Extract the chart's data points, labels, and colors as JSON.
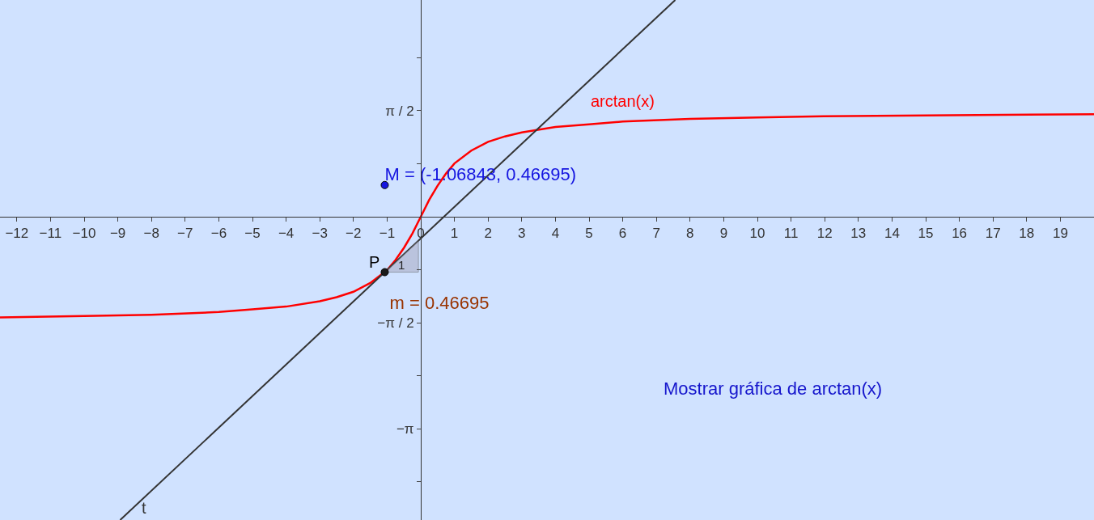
{
  "chart_data": {
    "type": "line",
    "x": [
      -12.5,
      -10,
      -8,
      -6,
      -5,
      -4,
      -3,
      -2.5,
      -2,
      -1.5,
      -1,
      -0.75,
      -0.5,
      -0.25,
      0,
      0.25,
      0.5,
      0.75,
      1,
      1.5,
      2,
      2.5,
      3,
      4,
      5,
      6,
      8,
      10,
      12,
      15,
      20
    ],
    "series": [
      {
        "name": "arctan(x)",
        "color": "#ff0000",
        "values": [
          -1.49,
          -1.47,
          -1.45,
          -1.41,
          -1.37,
          -1.33,
          -1.25,
          -1.19,
          -1.11,
          -0.98,
          -0.79,
          -0.64,
          -0.46,
          -0.25,
          0,
          0.25,
          0.46,
          0.64,
          0.79,
          0.98,
          1.11,
          1.19,
          1.25,
          1.33,
          1.37,
          1.41,
          1.45,
          1.47,
          1.49,
          1.5,
          1.52
        ]
      },
      {
        "name": "t",
        "color": "#333333",
        "x": [
          -8.93,
          7.56
        ],
        "values": [
          -4.49,
          3.21
        ]
      },
      {
        "type": "area",
        "color": "#a5a5bc",
        "x": [
          -1.07,
          -0.07,
          -0.07,
          -1.07
        ],
        "values": [
          -0.82,
          -0.82,
          -0.35,
          -0.82
        ]
      },
      {
        "type": "scatter",
        "name": "P",
        "color": "#1a1a1a",
        "x": [
          -1.07
        ],
        "values": [
          -0.82
        ]
      },
      {
        "type": "scatter",
        "color": "#1515e0",
        "x": [
          -1.07
        ],
        "values": [
          0.47
        ]
      }
    ],
    "annotations": [
      "M = (-1.06843, 0.46695)",
      "m = 0.46695",
      "1",
      "Mostrar gráfica de arctan(x)"
    ],
    "xlim": [
      -12.5,
      20
    ],
    "ylim": [
      -4.49,
      3.21
    ],
    "xticks": [
      {
        "value": -12,
        "label": "−12"
      },
      {
        "value": -11,
        "label": "−11"
      },
      {
        "value": -10,
        "label": "−10"
      },
      {
        "value": -9,
        "label": "−9"
      },
      {
        "value": -8,
        "label": "−8"
      },
      {
        "value": -7,
        "label": "−7"
      },
      {
        "value": -6,
        "label": "−6"
      },
      {
        "value": -5,
        "label": "−5"
      },
      {
        "value": -4,
        "label": "−4"
      },
      {
        "value": -3,
        "label": "−3"
      },
      {
        "value": -2,
        "label": "−2"
      },
      {
        "value": -1,
        "label": "−1"
      },
      0,
      1,
      2,
      3,
      4,
      5,
      6,
      7,
      8,
      9,
      10,
      11,
      12,
      13,
      14,
      15,
      16,
      17,
      18,
      19
    ],
    "yticks": [
      {
        "value": 2.3562,
        "label": null
      },
      {
        "value": 1.5708,
        "label": "π / 2"
      },
      {
        "value": 0.7854,
        "label": null
      },
      {
        "value": -0.7854,
        "label": null
      },
      {
        "value": -1.5708,
        "label": "−π / 2"
      },
      {
        "value": -2.3562,
        "label": null
      },
      {
        "value": -3.1416,
        "label": "−π"
      },
      {
        "value": -3.927,
        "label": null
      }
    ],
    "grid": false
  }
}
